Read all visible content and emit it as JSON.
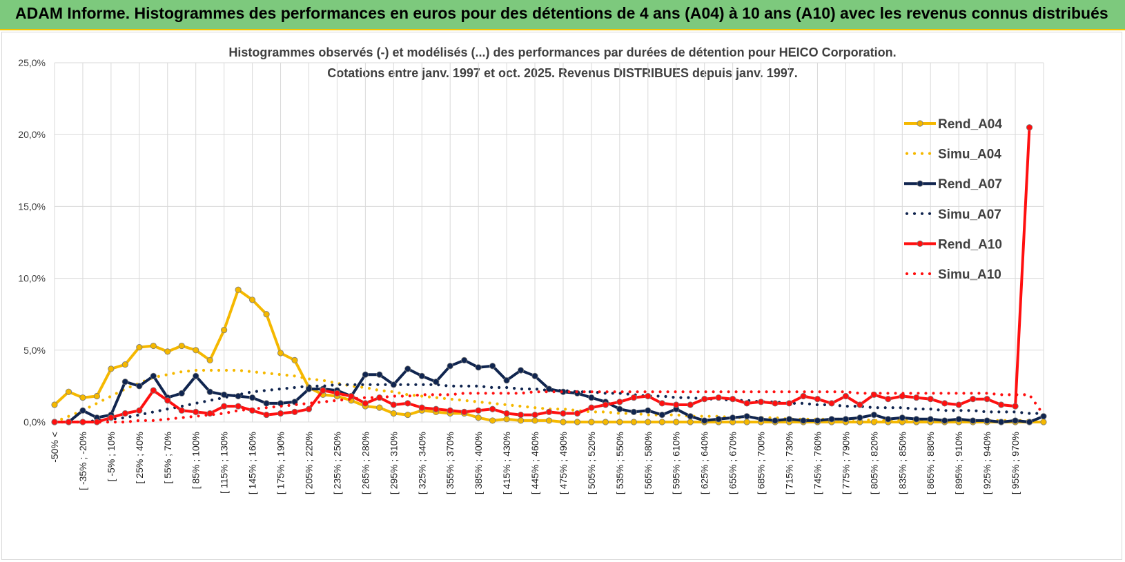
{
  "banner": {
    "title": "ADAM Informe. Histogrammes des performances en euros pour des détentions de 4 ans (A04) à 10 ans (A10) avec les revenus connus distribués"
  },
  "colors": {
    "banner": "#7dc97d",
    "A04": "#f5b800",
    "A07": "#10254f",
    "A10": "#ff1010",
    "grid": "#d9d9d9"
  },
  "chart_data": {
    "type": "line",
    "title": "Histogrammes observés (-) et modélisés (...) des performances par durées de détention pour HEICO Corporation.",
    "subtitle": "Cotations entre janv. 1997 et oct. 2025.  Revenus DISTRIBUES depuis janv. 1997.",
    "xlabel": "",
    "ylabel": "",
    "ylim": [
      0,
      25
    ],
    "y_unit": "%",
    "y_ticks": [
      "0,0%",
      "5,0%",
      "10,0%",
      "15,0%",
      "20,0%",
      "25,0%"
    ],
    "grid": true,
    "legend_position": "right",
    "x_labels": [
      "-50% <",
      "[ -35% ; -20%",
      "[ -5% ; 10%",
      "[ 25% ; 40%",
      "[ 55% ; 70%",
      "[ 85% ; 100%",
      "[ 115% ; 130%",
      "[ 145% ; 160%",
      "[ 175% ; 190%",
      "[ 205% ; 220%",
      "[ 235% ; 250%",
      "[ 265% ; 280%",
      "[ 295% ; 310%",
      "[ 325% ; 340%",
      "[ 355% ; 370%",
      "[ 385% ; 400%",
      "[ 415% ; 430%",
      "[ 445% ; 460%",
      "[ 475% ; 490%",
      "[ 505% ; 520%",
      "[ 535% ; 550%",
      "[ 565% ; 580%",
      "[ 595% ; 610%",
      "[ 625% ; 640%",
      "[ 655% ; 670%",
      "[ 685% ; 700%",
      "[ 715% ; 730%",
      "[ 745% ; 760%",
      "[ 775% ; 790%",
      "[ 805% ; 820%",
      "[ 835% ; 850%",
      "[ 865% ; 880%",
      "[ 895% ; 910%",
      "[ 925% ; 940%",
      "[ 955% ; 970%"
    ],
    "series": [
      {
        "name": "Rend_A04",
        "style": "solid",
        "color": "#f5b800",
        "values": [
          1.2,
          2.1,
          1.7,
          1.8,
          3.7,
          4.0,
          5.2,
          5.3,
          4.9,
          5.3,
          5.0,
          4.3,
          6.4,
          9.2,
          8.5,
          7.5,
          4.8,
          4.3,
          2.4,
          1.9,
          1.8,
          1.5,
          1.1,
          1.0,
          0.6,
          0.5,
          0.8,
          0.7,
          0.6,
          0.6,
          0.3,
          0.1,
          0.2,
          0.1,
          0.1,
          0.1,
          0.0,
          0.0,
          0.0,
          0.0,
          0.0,
          0.0,
          0.0,
          0.0,
          0.0,
          0.0,
          0.0,
          0.0,
          0.0,
          0.0,
          0.0,
          0.0,
          0.0,
          0.0,
          0.0,
          0.0,
          0.0,
          0.0,
          0.0,
          0.0,
          0.0,
          0.0,
          0.0,
          0.0,
          0.0,
          0.0,
          0.0,
          0.0,
          0.0,
          0.0,
          0.0
        ]
      },
      {
        "name": "Simu_A04",
        "style": "dotted",
        "color": "#f5b800",
        "values": [
          0.0,
          0.4,
          0.8,
          1.3,
          1.8,
          2.3,
          2.7,
          3.1,
          3.3,
          3.5,
          3.6,
          3.6,
          3.6,
          3.6,
          3.5,
          3.4,
          3.3,
          3.2,
          3.0,
          2.9,
          2.7,
          2.5,
          2.4,
          2.2,
          2.1,
          1.9,
          1.8,
          1.7,
          1.6,
          1.5,
          1.4,
          1.3,
          1.2,
          1.1,
          1.0,
          0.9,
          0.9,
          0.8,
          0.7,
          0.7,
          0.6,
          0.6,
          0.5,
          0.5,
          0.5,
          0.4,
          0.4,
          0.4,
          0.3,
          0.3,
          0.3,
          0.3,
          0.2,
          0.2,
          0.2,
          0.2,
          0.2,
          0.2,
          0.1,
          0.1,
          0.1,
          0.1,
          0.1,
          0.1,
          0.1,
          0.1,
          0.1,
          0.1,
          0.1,
          0.1,
          0.1
        ]
      },
      {
        "name": "Rend_A07",
        "style": "solid",
        "color": "#10254f",
        "values": [
          0.0,
          0.0,
          0.8,
          0.3,
          0.5,
          2.8,
          2.5,
          3.2,
          1.7,
          2.0,
          3.2,
          2.1,
          1.9,
          1.8,
          1.7,
          1.3,
          1.3,
          1.4,
          2.3,
          2.3,
          2.2,
          1.8,
          3.3,
          3.3,
          2.6,
          3.7,
          3.2,
          2.8,
          3.9,
          4.3,
          3.8,
          3.9,
          2.9,
          3.6,
          3.2,
          2.3,
          2.1,
          2.0,
          1.7,
          1.4,
          0.9,
          0.7,
          0.8,
          0.5,
          0.9,
          0.4,
          0.1,
          0.2,
          0.3,
          0.4,
          0.2,
          0.1,
          0.2,
          0.1,
          0.1,
          0.2,
          0.2,
          0.3,
          0.5,
          0.2,
          0.3,
          0.2,
          0.2,
          0.1,
          0.2,
          0.1,
          0.1,
          0.0,
          0.1,
          0.0,
          0.4
        ]
      },
      {
        "name": "Simu_A07",
        "style": "dotted",
        "color": "#10254f",
        "values": [
          0.0,
          0.0,
          0.0,
          0.1,
          0.2,
          0.3,
          0.5,
          0.7,
          0.9,
          1.1,
          1.3,
          1.5,
          1.7,
          1.9,
          2.1,
          2.2,
          2.3,
          2.4,
          2.5,
          2.5,
          2.6,
          2.6,
          2.6,
          2.6,
          2.6,
          2.6,
          2.6,
          2.6,
          2.5,
          2.5,
          2.5,
          2.4,
          2.4,
          2.3,
          2.3,
          2.2,
          2.2,
          2.1,
          2.1,
          2.0,
          2.0,
          1.9,
          1.8,
          1.8,
          1.7,
          1.7,
          1.6,
          1.6,
          1.5,
          1.5,
          1.4,
          1.4,
          1.3,
          1.3,
          1.2,
          1.2,
          1.1,
          1.1,
          1.0,
          1.0,
          1.0,
          0.9,
          0.9,
          0.8,
          0.8,
          0.8,
          0.7,
          0.7,
          0.7,
          0.6,
          0.6
        ]
      },
      {
        "name": "Rend_A10",
        "style": "solid",
        "color": "#ff1010",
        "values": [
          0.0,
          0.0,
          0.0,
          0.0,
          0.3,
          0.6,
          0.8,
          2.2,
          1.5,
          0.8,
          0.7,
          0.6,
          1.1,
          1.1,
          0.8,
          0.5,
          0.6,
          0.7,
          0.9,
          2.2,
          2.0,
          1.8,
          1.3,
          1.7,
          1.2,
          1.3,
          1.0,
          0.9,
          0.8,
          0.7,
          0.8,
          0.9,
          0.6,
          0.5,
          0.5,
          0.7,
          0.6,
          0.6,
          1.0,
          1.2,
          1.4,
          1.7,
          1.8,
          1.3,
          1.2,
          1.2,
          1.6,
          1.7,
          1.6,
          1.3,
          1.4,
          1.3,
          1.3,
          1.8,
          1.6,
          1.3,
          1.8,
          1.2,
          1.9,
          1.6,
          1.8,
          1.7,
          1.6,
          1.3,
          1.2,
          1.6,
          1.6,
          1.2,
          1.1,
          20.5,
          null
        ]
      },
      {
        "name": "Simu_A10",
        "style": "dotted",
        "color": "#ff1010",
        "values": [
          0.0,
          0.0,
          0.0,
          0.0,
          0.0,
          0.0,
          0.1,
          0.1,
          0.2,
          0.3,
          0.4,
          0.5,
          0.6,
          0.8,
          0.9,
          1.0,
          1.1,
          1.2,
          1.3,
          1.4,
          1.5,
          1.6,
          1.7,
          1.7,
          1.8,
          1.8,
          1.9,
          1.9,
          1.9,
          2.0,
          2.0,
          2.0,
          2.0,
          2.0,
          2.1,
          2.1,
          2.1,
          2.1,
          2.1,
          2.1,
          2.1,
          2.1,
          2.1,
          2.1,
          2.1,
          2.1,
          2.1,
          2.1,
          2.1,
          2.1,
          2.1,
          2.1,
          2.1,
          2.1,
          2.1,
          2.1,
          2.1,
          2.0,
          2.0,
          2.0,
          2.0,
          2.0,
          2.0,
          2.0,
          2.0,
          2.0,
          2.0,
          1.9,
          1.9,
          1.9,
          0.5
        ]
      }
    ]
  }
}
